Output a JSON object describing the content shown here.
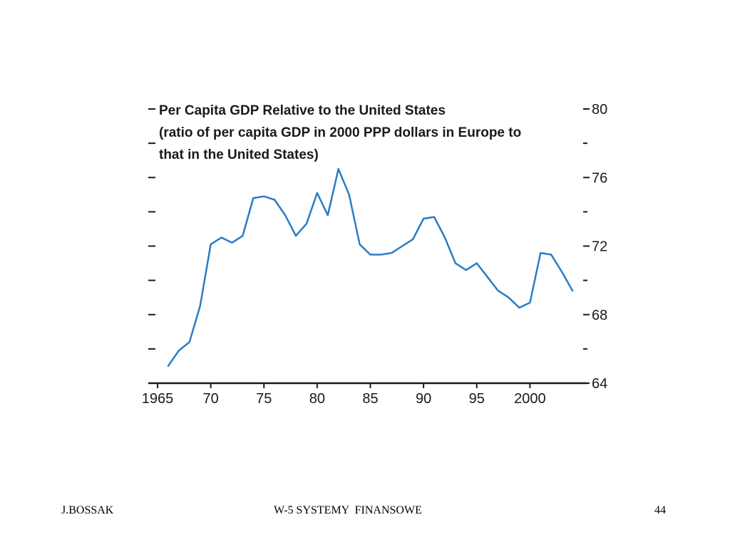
{
  "chart_data": {
    "type": "line",
    "title_lines": [
      "Per Capita GDP Relative to the United States",
      "(ratio of per capita GDP in 2000 PPP dollars in Europe to",
      "that in the United States)"
    ],
    "xlabel": "",
    "ylabel": "",
    "x_tick_labels": [
      "1965",
      "70",
      "75",
      "80",
      "85",
      "90",
      "95",
      "2000"
    ],
    "x_tick_values": [
      1965,
      1970,
      1975,
      1980,
      1985,
      1990,
      1995,
      2000
    ],
    "y_tick_labels": [
      "80",
      "76",
      "72",
      "68",
      "64"
    ],
    "y_tick_values": [
      80,
      76,
      72,
      68,
      64
    ],
    "y_minor_ticks": [
      66,
      70,
      74,
      78
    ],
    "xlim": [
      1965,
      2005
    ],
    "ylim": [
      64,
      80
    ],
    "y_axis_side": "right",
    "grid": false,
    "series": [
      {
        "color": "#2a7cc4",
        "x": [
          1966,
          1967,
          1968,
          1969,
          1970,
          1971,
          1972,
          1973,
          1974,
          1975,
          1976,
          1977,
          1978,
          1979,
          1980,
          1981,
          1982,
          1983,
          1984,
          1985,
          1986,
          1987,
          1988,
          1989,
          1990,
          1991,
          1992,
          1993,
          1994,
          1995,
          1996,
          1997,
          1998,
          1999,
          2000,
          2001,
          2002,
          2003,
          2004
        ],
        "y": [
          65.0,
          65.9,
          66.4,
          68.5,
          72.1,
          72.5,
          72.2,
          72.6,
          74.8,
          74.9,
          74.7,
          73.8,
          72.6,
          73.3,
          75.1,
          73.8,
          76.5,
          75.0,
          72.1,
          71.5,
          71.5,
          71.6,
          72.0,
          72.4,
          73.6,
          73.7,
          72.5,
          71.0,
          70.6,
          71.0,
          70.2,
          69.4,
          69.0,
          68.4,
          68.7,
          71.6,
          71.5,
          70.5,
          69.4
        ]
      }
    ]
  },
  "footer": {
    "left": "J.BOSSAK",
    "center": "W-5 SYSTEMY  FINANSOWE",
    "right": "44"
  }
}
